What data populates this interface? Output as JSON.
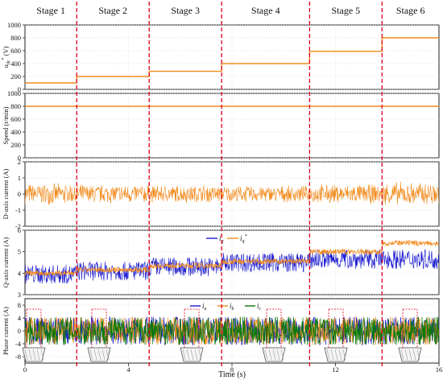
{
  "stages": [
    "Stage 1",
    "Stage 2",
    "Stage 3",
    "Stage 4",
    "Stage 5",
    "Stage 6"
  ],
  "xaxis": {
    "label": "Time (s)",
    "ticks": [
      "0",
      "4",
      "8",
      "12",
      "16"
    ],
    "range": [
      0,
      16
    ]
  },
  "colors": {
    "orange": "#f28c1e",
    "blue": "#1a1ad0",
    "green": "#0a7a0a",
    "red_dash": "#e0001b",
    "grid": "#c8c8c8"
  },
  "chart_data": [
    {
      "type": "line",
      "ylabel": "u_dc* (V)",
      "ylim": [
        0,
        1000
      ],
      "yticks": [
        "0",
        "200",
        "400",
        "600",
        "800",
        "1000"
      ],
      "x": [
        0,
        2,
        2,
        4.8,
        4.8,
        7.6,
        7.6,
        11,
        11,
        13.8,
        13.8,
        16
      ],
      "series": [
        {
          "values": [
            100,
            100,
            200,
            200,
            280,
            280,
            400,
            400,
            590,
            590,
            800,
            800
          ]
        }
      ]
    },
    {
      "type": "line",
      "ylabel": "Speed (r/min)",
      "ylim": [
        0,
        1000
      ],
      "yticks": [
        "0",
        "200",
        "400",
        "600",
        "800",
        "1000"
      ],
      "x": [
        0,
        16
      ],
      "series": [
        {
          "values": [
            800,
            800
          ]
        }
      ]
    },
    {
      "type": "line",
      "ylabel": "D-axis current (A)",
      "ylim": [
        -2,
        2
      ],
      "yticks": [
        "-2",
        "-1",
        "0",
        "1",
        "2"
      ],
      "stage_amplitude": [
        0.7,
        0.65,
        0.6,
        0.55,
        0.65,
        0.8
      ],
      "series": [
        {
          "values": [
            0,
            0,
            0,
            0,
            0,
            0
          ]
        }
      ]
    },
    {
      "type": "line",
      "ylabel": "Q-axis current (A)",
      "ylim": [
        3,
        6
      ],
      "yticks": [
        "3",
        "4",
        "5",
        "6"
      ],
      "legend": [
        "i_q",
        "i_q*"
      ],
      "stage_mean": [
        3.95,
        4.1,
        4.3,
        4.5,
        4.65,
        4.65
      ],
      "stage_ref": [
        4.0,
        4.15,
        4.35,
        4.55,
        5.0,
        5.4
      ],
      "series": [
        {
          "values": [
            3.95,
            4.1,
            4.3,
            4.5,
            4.65,
            4.65
          ]
        },
        {
          "values": [
            4.0,
            4.15,
            4.35,
            4.55,
            5.0,
            5.4
          ]
        }
      ]
    },
    {
      "type": "line",
      "ylabel": "Phase current (A)",
      "ylim": [
        -10,
        10
      ],
      "yticks": [
        "-8",
        "-4",
        "0",
        "4",
        "8"
      ],
      "legend": [
        "i_a",
        "i_b",
        "i_c"
      ],
      "series": [
        {
          "values": [
            0
          ]
        },
        {
          "values": [
            0
          ]
        },
        {
          "values": [
            0
          ]
        }
      ]
    }
  ]
}
